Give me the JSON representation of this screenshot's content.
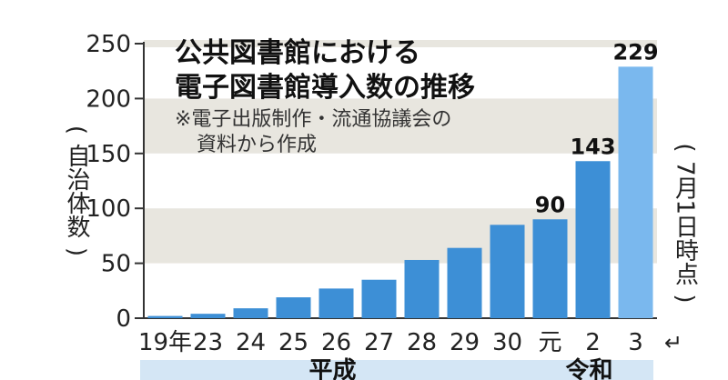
{
  "chart_data": {
    "type": "bar",
    "title_lines": [
      "公共図書館における",
      "電子図書館導入数の推移"
    ],
    "source_lines": [
      "※電子出版制作・流通協議会の",
      "資料から作成"
    ],
    "ylabel_open": "(",
    "ylabel_chars": "自治体数",
    "ylabel_close": ")",
    "note_open": "(",
    "note_chars": "7月1日時点",
    "note_close": ")",
    "ylim": [
      0,
      250
    ],
    "yticks": [
      0,
      50,
      100,
      150,
      200,
      250
    ],
    "grid": "horizontal bands",
    "categories": [
      "19年",
      "23",
      "24",
      "25",
      "26",
      "27",
      "28",
      "29",
      "30",
      "元",
      "2",
      "3"
    ],
    "values": [
      2,
      4,
      9,
      19,
      27,
      35,
      53,
      64,
      85,
      90,
      143,
      229
    ],
    "data_labels": {
      "9": "90",
      "10": "143",
      "11": "229"
    },
    "era_labels": [
      {
        "label": "平成",
        "from": 0,
        "to": 8
      },
      {
        "label": "令和",
        "from": 9,
        "to": 11
      }
    ],
    "arrow_glyph": "↵",
    "colors": {
      "bar": "#3d8fd6",
      "bar_highlight": "#7ab8ee",
      "band": "#e8e6df",
      "era_band": "#d4e6f5"
    }
  }
}
